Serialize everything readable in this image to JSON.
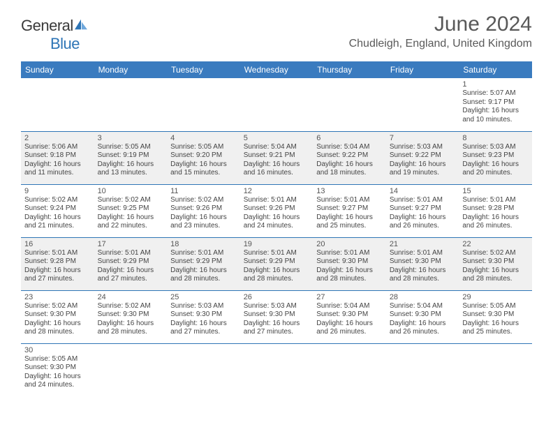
{
  "logo": {
    "text1": "General",
    "text2": "Blue",
    "brand_color": "#2e75b6"
  },
  "title": "June 2024",
  "location": "Chudleigh, England, United Kingdom",
  "header_bg": "#3a7bbf",
  "weekday_labels": [
    "Sunday",
    "Monday",
    "Tuesday",
    "Wednesday",
    "Thursday",
    "Friday",
    "Saturday"
  ],
  "weeks": [
    [
      null,
      null,
      null,
      null,
      null,
      null,
      {
        "n": "1",
        "sr": "5:07 AM",
        "ss": "9:17 PM",
        "dl": "16 hours and 10 minutes."
      }
    ],
    [
      {
        "n": "2",
        "sr": "5:06 AM",
        "ss": "9:18 PM",
        "dl": "16 hours and 11 minutes."
      },
      {
        "n": "3",
        "sr": "5:05 AM",
        "ss": "9:19 PM",
        "dl": "16 hours and 13 minutes."
      },
      {
        "n": "4",
        "sr": "5:05 AM",
        "ss": "9:20 PM",
        "dl": "16 hours and 15 minutes."
      },
      {
        "n": "5",
        "sr": "5:04 AM",
        "ss": "9:21 PM",
        "dl": "16 hours and 16 minutes."
      },
      {
        "n": "6",
        "sr": "5:04 AM",
        "ss": "9:22 PM",
        "dl": "16 hours and 18 minutes."
      },
      {
        "n": "7",
        "sr": "5:03 AM",
        "ss": "9:22 PM",
        "dl": "16 hours and 19 minutes."
      },
      {
        "n": "8",
        "sr": "5:03 AM",
        "ss": "9:23 PM",
        "dl": "16 hours and 20 minutes."
      }
    ],
    [
      {
        "n": "9",
        "sr": "5:02 AM",
        "ss": "9:24 PM",
        "dl": "16 hours and 21 minutes."
      },
      {
        "n": "10",
        "sr": "5:02 AM",
        "ss": "9:25 PM",
        "dl": "16 hours and 22 minutes."
      },
      {
        "n": "11",
        "sr": "5:02 AM",
        "ss": "9:26 PM",
        "dl": "16 hours and 23 minutes."
      },
      {
        "n": "12",
        "sr": "5:01 AM",
        "ss": "9:26 PM",
        "dl": "16 hours and 24 minutes."
      },
      {
        "n": "13",
        "sr": "5:01 AM",
        "ss": "9:27 PM",
        "dl": "16 hours and 25 minutes."
      },
      {
        "n": "14",
        "sr": "5:01 AM",
        "ss": "9:27 PM",
        "dl": "16 hours and 26 minutes."
      },
      {
        "n": "15",
        "sr": "5:01 AM",
        "ss": "9:28 PM",
        "dl": "16 hours and 26 minutes."
      }
    ],
    [
      {
        "n": "16",
        "sr": "5:01 AM",
        "ss": "9:28 PM",
        "dl": "16 hours and 27 minutes."
      },
      {
        "n": "17",
        "sr": "5:01 AM",
        "ss": "9:29 PM",
        "dl": "16 hours and 27 minutes."
      },
      {
        "n": "18",
        "sr": "5:01 AM",
        "ss": "9:29 PM",
        "dl": "16 hours and 28 minutes."
      },
      {
        "n": "19",
        "sr": "5:01 AM",
        "ss": "9:29 PM",
        "dl": "16 hours and 28 minutes."
      },
      {
        "n": "20",
        "sr": "5:01 AM",
        "ss": "9:30 PM",
        "dl": "16 hours and 28 minutes."
      },
      {
        "n": "21",
        "sr": "5:01 AM",
        "ss": "9:30 PM",
        "dl": "16 hours and 28 minutes."
      },
      {
        "n": "22",
        "sr": "5:02 AM",
        "ss": "9:30 PM",
        "dl": "16 hours and 28 minutes."
      }
    ],
    [
      {
        "n": "23",
        "sr": "5:02 AM",
        "ss": "9:30 PM",
        "dl": "16 hours and 28 minutes."
      },
      {
        "n": "24",
        "sr": "5:02 AM",
        "ss": "9:30 PM",
        "dl": "16 hours and 28 minutes."
      },
      {
        "n": "25",
        "sr": "5:03 AM",
        "ss": "9:30 PM",
        "dl": "16 hours and 27 minutes."
      },
      {
        "n": "26",
        "sr": "5:03 AM",
        "ss": "9:30 PM",
        "dl": "16 hours and 27 minutes."
      },
      {
        "n": "27",
        "sr": "5:04 AM",
        "ss": "9:30 PM",
        "dl": "16 hours and 26 minutes."
      },
      {
        "n": "28",
        "sr": "5:04 AM",
        "ss": "9:30 PM",
        "dl": "16 hours and 26 minutes."
      },
      {
        "n": "29",
        "sr": "5:05 AM",
        "ss": "9:30 PM",
        "dl": "16 hours and 25 minutes."
      }
    ],
    [
      {
        "n": "30",
        "sr": "5:05 AM",
        "ss": "9:30 PM",
        "dl": "16 hours and 24 minutes."
      },
      null,
      null,
      null,
      null,
      null,
      null
    ]
  ],
  "labels": {
    "sunrise": "Sunrise:",
    "sunset": "Sunset:",
    "daylight": "Daylight:"
  }
}
